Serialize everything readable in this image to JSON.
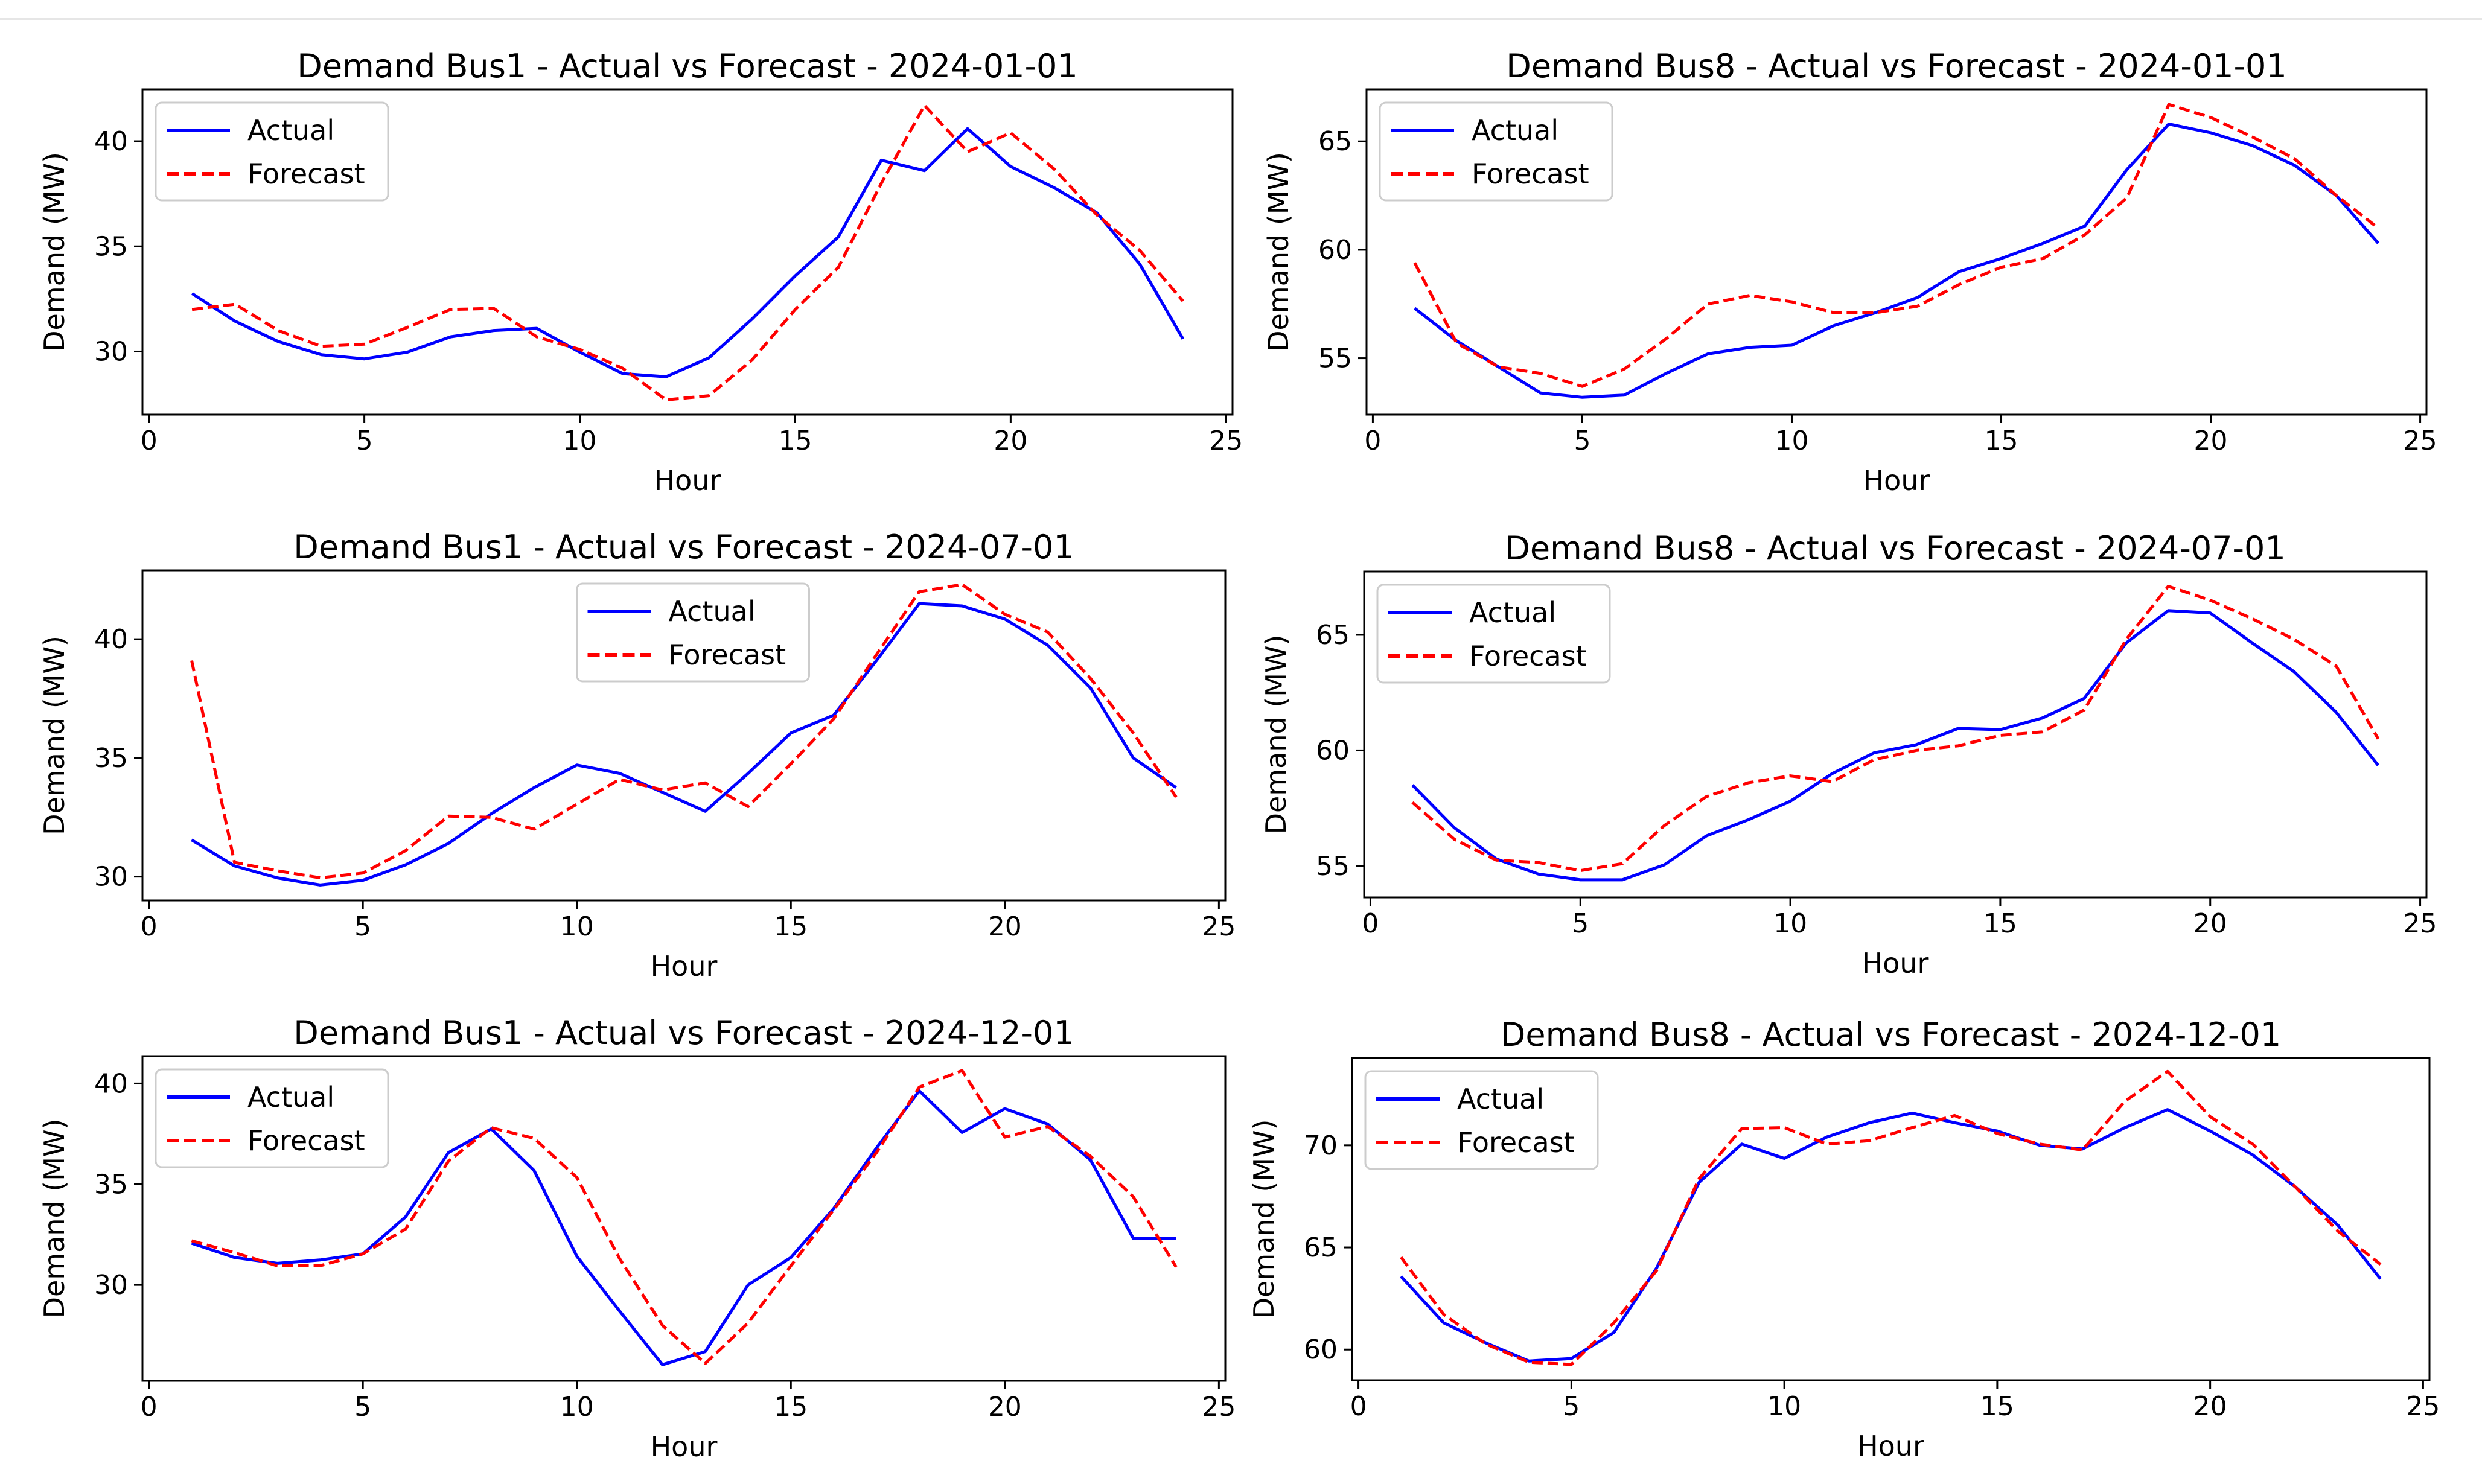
{
  "chart_data": [
    {
      "type": "line",
      "title": "Demand Bus1 - Actual vs Forecast - 2024-01-01",
      "xlabel": "Hour",
      "ylabel": "Demand (MW)",
      "xlim": [
        -0.15,
        25.15
      ],
      "ylim": [
        27.0,
        42.47
      ],
      "xticks": [
        0,
        5,
        10,
        15,
        20,
        25
      ],
      "yticks": [
        30,
        35,
        40
      ],
      "legend": "upper-left",
      "grid": false,
      "x": [
        1,
        2,
        3,
        4,
        5,
        6,
        7,
        8,
        9,
        10,
        11,
        12,
        13,
        14,
        15,
        16,
        17,
        18,
        19,
        20,
        21,
        22,
        23,
        24
      ],
      "series": [
        {
          "name": "Actual",
          "color": "#0000ff",
          "style": "solid",
          "values": [
            32.76,
            31.44,
            30.48,
            29.85,
            29.65,
            29.97,
            30.7,
            31.0,
            31.1,
            29.97,
            28.95,
            28.8,
            29.7,
            31.55,
            33.6,
            35.45,
            39.1,
            38.6,
            40.6,
            38.8,
            37.8,
            36.6,
            34.15,
            30.6
          ]
        },
        {
          "name": "Forecast",
          "color": "#ff0000",
          "style": "dashed",
          "values": [
            32.0,
            32.25,
            31.0,
            30.25,
            30.35,
            31.15,
            32.0,
            32.05,
            30.7,
            30.1,
            29.2,
            27.7,
            27.9,
            29.6,
            32.0,
            34.0,
            38.0,
            41.7,
            39.5,
            40.4,
            38.7,
            36.5,
            34.8,
            32.4
          ]
        }
      ]
    },
    {
      "type": "line",
      "title": "Demand Bus8 - Actual vs Forecast - 2024-01-01",
      "xlabel": "Hour",
      "ylabel": "Demand (MW)",
      "xlim": [
        -0.15,
        25.15
      ],
      "ylim": [
        52.4,
        67.4
      ],
      "xticks": [
        0,
        5,
        10,
        15,
        20,
        25
      ],
      "yticks": [
        55,
        60,
        65
      ],
      "legend": "upper-left",
      "grid": false,
      "x": [
        1,
        2,
        3,
        4,
        5,
        6,
        7,
        8,
        9,
        10,
        11,
        12,
        13,
        14,
        15,
        16,
        17,
        18,
        19,
        20,
        21,
        22,
        23,
        24
      ],
      "series": [
        {
          "name": "Actual",
          "color": "#0000ff",
          "style": "solid",
          "values": [
            57.3,
            55.8,
            54.6,
            53.4,
            53.2,
            53.3,
            54.3,
            55.2,
            55.5,
            55.6,
            56.5,
            57.1,
            57.8,
            59.0,
            59.6,
            60.3,
            61.1,
            63.7,
            65.8,
            65.4,
            64.8,
            63.9,
            62.5,
            60.3
          ]
        },
        {
          "name": "Forecast",
          "color": "#ff0000",
          "style": "dashed",
          "values": [
            59.4,
            55.7,
            54.6,
            54.3,
            53.7,
            54.5,
            55.9,
            57.5,
            57.9,
            57.6,
            57.1,
            57.1,
            57.4,
            58.4,
            59.2,
            59.6,
            60.7,
            62.4,
            66.7,
            66.1,
            65.2,
            64.2,
            62.5,
            61.0
          ]
        }
      ]
    },
    {
      "type": "line",
      "title": "Demand Bus1 - Actual vs Forecast - 2024-07-01",
      "xlabel": "Hour",
      "ylabel": "Demand (MW)",
      "xlim": [
        -0.15,
        25.15
      ],
      "ylim": [
        29.0,
        42.9
      ],
      "xticks": [
        0,
        5,
        10,
        15,
        20,
        25
      ],
      "yticks": [
        30,
        35,
        40
      ],
      "legend": "upper-center",
      "grid": false,
      "x": [
        1,
        2,
        3,
        4,
        5,
        6,
        7,
        8,
        9,
        10,
        11,
        12,
        13,
        14,
        15,
        16,
        17,
        18,
        19,
        20,
        21,
        22,
        23,
        24
      ],
      "series": [
        {
          "name": "Actual",
          "color": "#0000ff",
          "style": "solid",
          "values": [
            31.55,
            30.45,
            29.95,
            29.65,
            29.85,
            30.5,
            31.4,
            32.65,
            33.75,
            34.7,
            34.35,
            33.55,
            32.75,
            34.35,
            36.05,
            36.8,
            39.1,
            41.5,
            41.4,
            40.85,
            39.75,
            37.95,
            35.0,
            33.75
          ]
        },
        {
          "name": "Forecast",
          "color": "#ff0000",
          "style": "dashed",
          "values": [
            39.1,
            30.6,
            30.25,
            29.95,
            30.15,
            31.1,
            32.55,
            32.5,
            32.0,
            33.05,
            34.1,
            33.65,
            33.95,
            32.95,
            34.75,
            36.65,
            39.35,
            42.0,
            42.3,
            41.05,
            40.3,
            38.35,
            36.05,
            33.35
          ]
        }
      ]
    },
    {
      "type": "line",
      "title": "Demand Bus8 - Actual vs Forecast - 2024-07-01",
      "xlabel": "Hour",
      "ylabel": "Demand (MW)",
      "xlim": [
        -0.15,
        25.15
      ],
      "ylim": [
        53.64,
        67.74
      ],
      "xticks": [
        0,
        5,
        10,
        15,
        20,
        25
      ],
      "yticks": [
        55,
        60,
        65
      ],
      "legend": "upper-left",
      "grid": false,
      "x": [
        1,
        2,
        3,
        4,
        5,
        6,
        7,
        8,
        9,
        10,
        11,
        12,
        13,
        14,
        15,
        16,
        17,
        18,
        19,
        20,
        21,
        22,
        23,
        24
      ],
      "series": [
        {
          "name": "Actual",
          "color": "#0000ff",
          "style": "solid",
          "values": [
            58.5,
            56.65,
            55.3,
            54.65,
            54.4,
            54.4,
            55.05,
            56.3,
            57.0,
            57.8,
            59.0,
            59.9,
            60.25,
            60.95,
            60.9,
            61.4,
            62.25,
            64.65,
            66.05,
            65.95,
            64.65,
            63.4,
            61.65,
            59.35
          ]
        },
        {
          "name": "Forecast",
          "color": "#ff0000",
          "style": "dashed",
          "values": [
            57.75,
            56.15,
            55.25,
            55.15,
            54.8,
            55.1,
            56.75,
            58.0,
            58.6,
            58.9,
            58.65,
            59.6,
            60.0,
            60.2,
            60.65,
            60.8,
            61.75,
            64.8,
            67.1,
            66.5,
            65.7,
            64.8,
            63.65,
            60.5
          ]
        }
      ]
    },
    {
      "type": "line",
      "title": "Demand Bus1 - Actual vs Forecast - 2024-12-01",
      "xlabel": "Hour",
      "ylabel": "Demand (MW)",
      "xlim": [
        -0.15,
        25.15
      ],
      "ylim": [
        25.24,
        41.36
      ],
      "xticks": [
        0,
        5,
        10,
        15,
        20,
        25
      ],
      "yticks": [
        30,
        35,
        40
      ],
      "legend": "upper-left",
      "grid": false,
      "x": [
        1,
        2,
        3,
        4,
        5,
        6,
        7,
        8,
        9,
        10,
        11,
        12,
        13,
        14,
        15,
        16,
        17,
        18,
        19,
        20,
        21,
        22,
        23,
        24
      ],
      "series": [
        {
          "name": "Actual",
          "color": "#0000ff",
          "style": "solid",
          "values": [
            32.07,
            31.36,
            31.07,
            31.24,
            31.54,
            33.38,
            36.57,
            37.75,
            35.68,
            31.42,
            28.7,
            26.04,
            26.69,
            30.0,
            31.36,
            33.79,
            36.8,
            39.64,
            37.57,
            38.75,
            37.99,
            36.21,
            32.31,
            32.31
          ]
        },
        {
          "name": "Forecast",
          "color": "#ff0000",
          "style": "dashed",
          "values": [
            32.19,
            31.6,
            30.95,
            30.95,
            31.54,
            32.78,
            36.15,
            37.81,
            37.28,
            35.33,
            31.3,
            27.99,
            26.1,
            28.11,
            30.95,
            33.73,
            36.57,
            39.82,
            40.64,
            37.34,
            37.87,
            36.39,
            34.38,
            30.89
          ]
        }
      ]
    },
    {
      "type": "line",
      "title": "Demand Bus8 - Actual vs Forecast - 2024-12-01",
      "xlabel": "Hour",
      "ylabel": "Demand (MW)",
      "xlim": [
        -0.15,
        25.15
      ],
      "ylim": [
        58.5,
        74.28
      ],
      "xticks": [
        0,
        5,
        10,
        15,
        20,
        25
      ],
      "yticks": [
        60,
        65,
        70
      ],
      "legend": "upper-left",
      "grid": false,
      "x": [
        1,
        2,
        3,
        4,
        5,
        6,
        7,
        8,
        9,
        10,
        11,
        12,
        13,
        14,
        15,
        16,
        17,
        18,
        19,
        20,
        21,
        22,
        23,
        24
      ],
      "series": [
        {
          "name": "Actual",
          "color": "#0000ff",
          "style": "solid",
          "values": [
            63.58,
            61.31,
            60.32,
            59.44,
            59.56,
            60.84,
            63.99,
            68.19,
            70.06,
            69.36,
            70.41,
            71.11,
            71.58,
            71.11,
            70.7,
            70.0,
            69.82,
            70.87,
            71.75,
            70.7,
            69.53,
            67.96,
            66.09,
            63.46
          ]
        },
        {
          "name": "Forecast",
          "color": "#ff0000",
          "style": "dashed",
          "values": [
            64.52,
            61.72,
            60.26,
            59.38,
            59.27,
            61.31,
            63.87,
            68.37,
            70.82,
            70.87,
            70.06,
            70.23,
            70.87,
            71.46,
            70.58,
            70.06,
            69.77,
            72.16,
            73.62,
            71.4,
            70.06,
            67.96,
            65.8,
            64.17
          ]
        }
      ]
    }
  ]
}
